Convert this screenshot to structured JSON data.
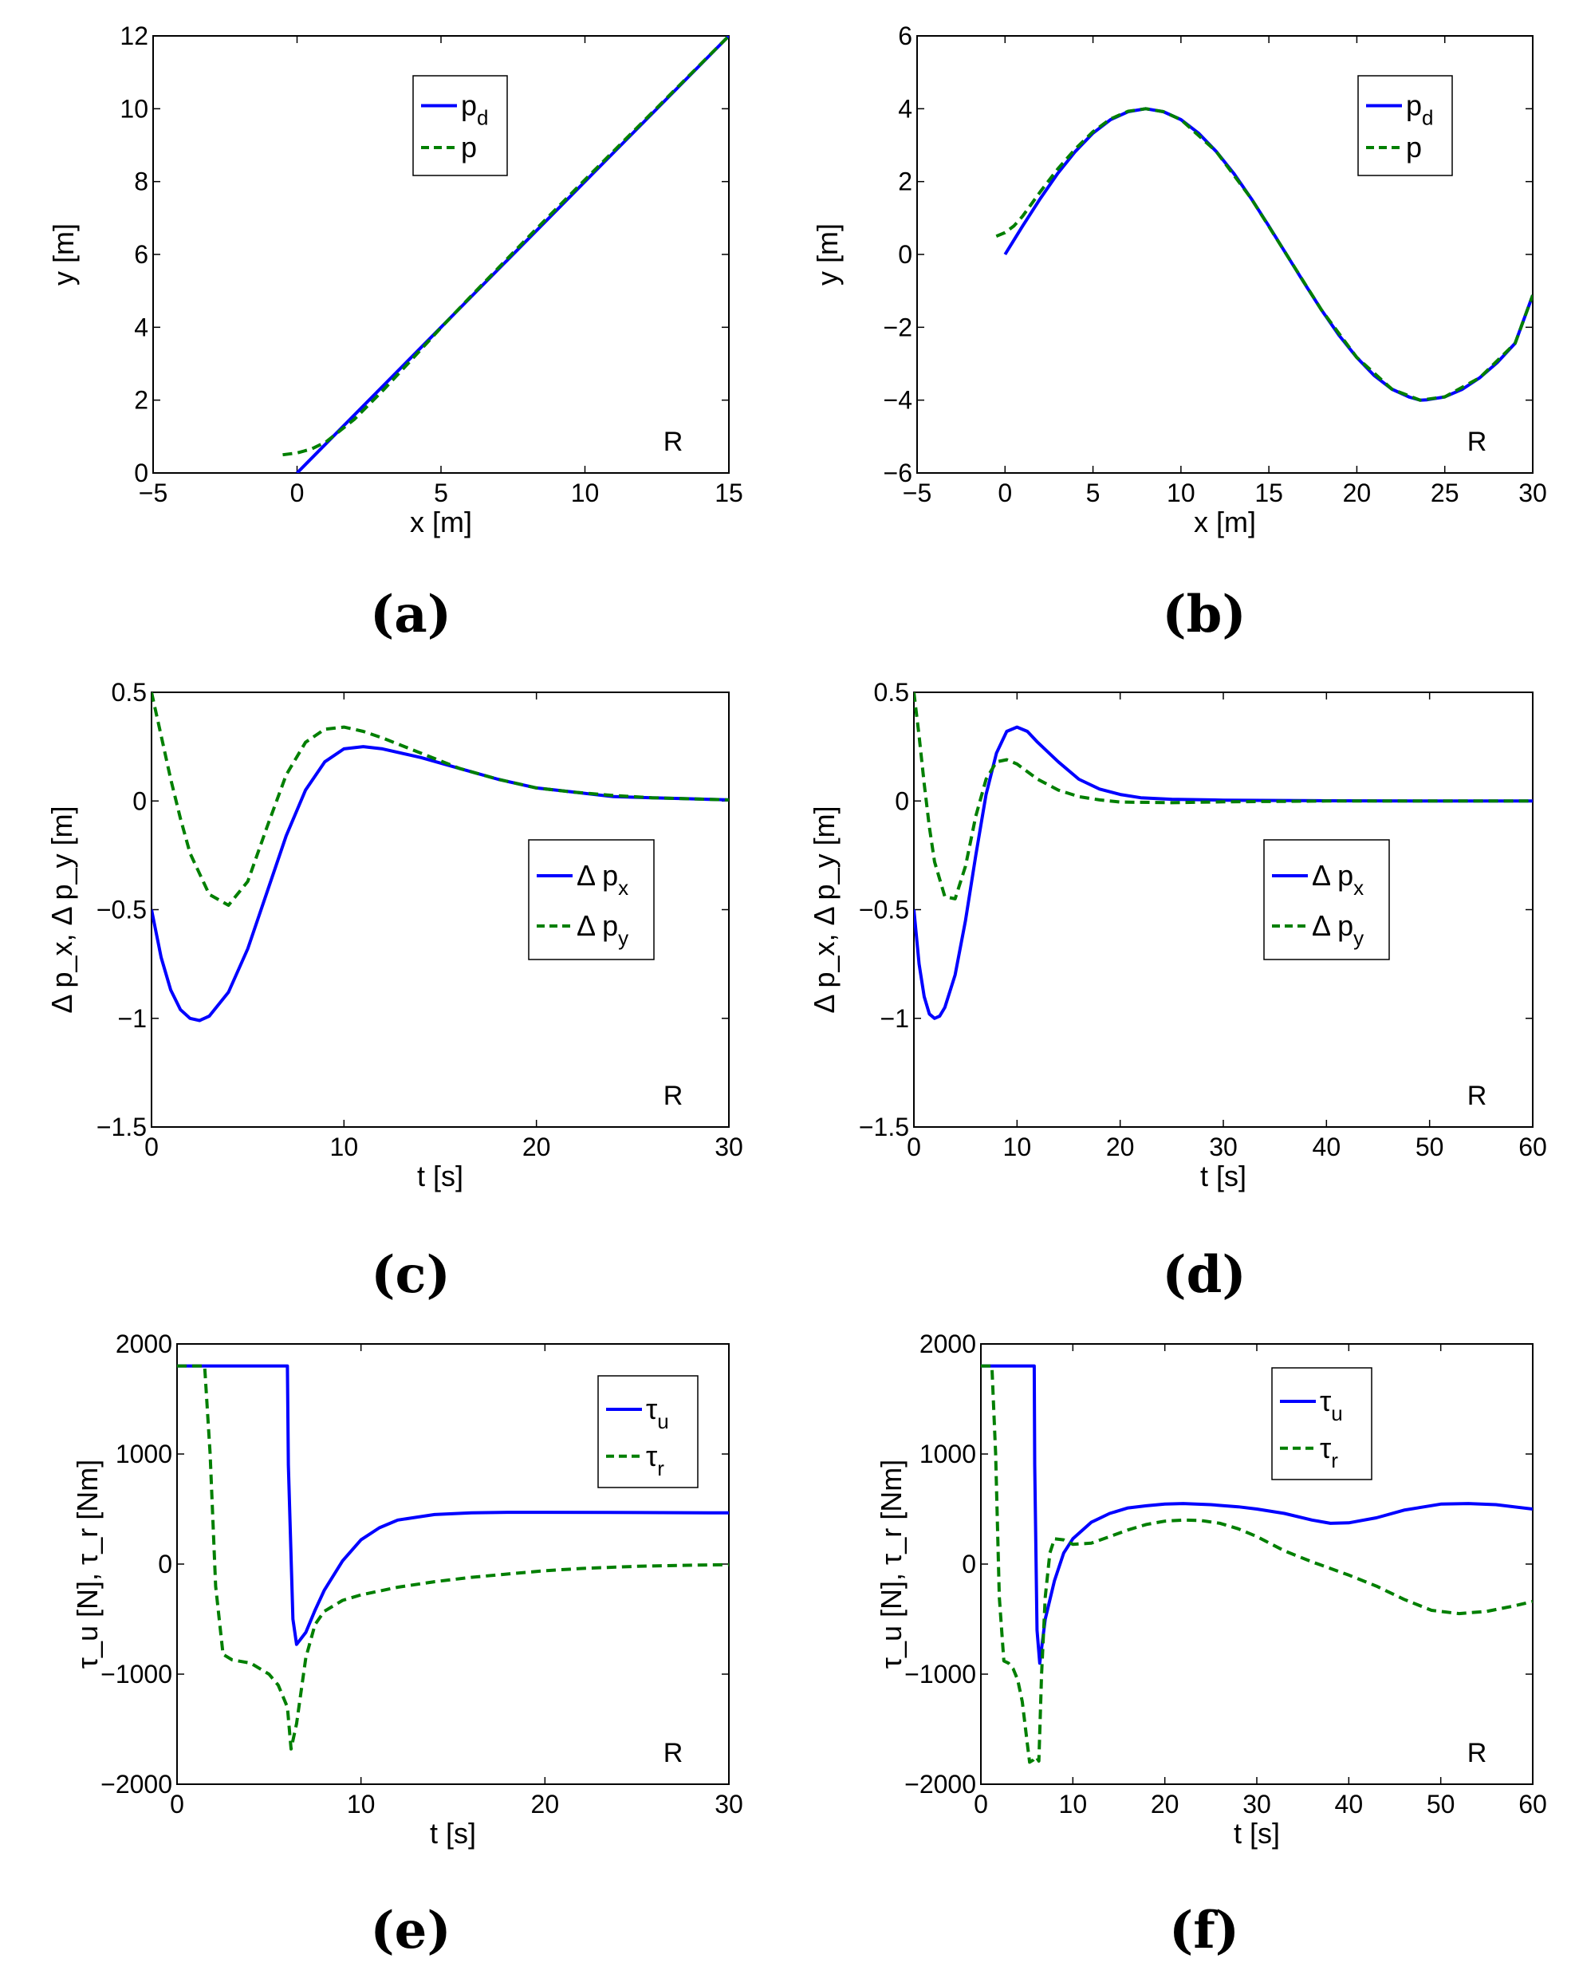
{
  "figure": {
    "caption_labels": [
      "(a)",
      "(b)",
      "(c)",
      "(d)",
      "(e)",
      "(f)"
    ]
  },
  "colors": {
    "blue": "#0000ff",
    "green": "#007f00",
    "axis": "#000000"
  },
  "chart_data": [
    {
      "id": "a",
      "type": "line",
      "xlabel": "x [m]",
      "ylabel": "y [m]",
      "xlim": [
        -5,
        15
      ],
      "ylim": [
        0,
        12
      ],
      "xticks": [
        -5,
        0,
        5,
        10,
        15
      ],
      "xtick_labels": [
        "−5",
        "0",
        "5",
        "10",
        "15"
      ],
      "yticks": [
        0,
        2,
        4,
        6,
        8,
        10,
        12
      ],
      "ytick_labels": [
        "0",
        "2",
        "4",
        "6",
        "8",
        "10",
        "12"
      ],
      "annotation": "R",
      "legend": {
        "position": "top-center",
        "entries": [
          {
            "base": "p",
            "sub": "d"
          },
          {
            "base": "p",
            "sub": ""
          }
        ]
      },
      "series": [
        {
          "name": "p_d",
          "style": "solid",
          "color": "#0000ff",
          "x": [
            0,
            15
          ],
          "y": [
            0,
            12
          ]
        },
        {
          "name": "p",
          "style": "dashed",
          "color": "#007f00",
          "x": [
            -0.5,
            0,
            0.5,
            1,
            2,
            3,
            4,
            5,
            6,
            8,
            10,
            12,
            15
          ],
          "y": [
            0.5,
            0.55,
            0.66,
            0.85,
            1.48,
            2.28,
            3.13,
            3.99,
            4.82,
            6.45,
            8.05,
            9.63,
            12.0
          ]
        }
      ]
    },
    {
      "id": "b",
      "type": "line",
      "xlabel": "x [m]",
      "ylabel": "y [m]",
      "xlim": [
        -5,
        30
      ],
      "ylim": [
        -6,
        6
      ],
      "xticks": [
        -5,
        0,
        5,
        10,
        15,
        20,
        25,
        30
      ],
      "xtick_labels": [
        "−5",
        "0",
        "5",
        "10",
        "15",
        "20",
        "25",
        "30"
      ],
      "yticks": [
        -6,
        -4,
        -2,
        0,
        2,
        4,
        6
      ],
      "ytick_labels": [
        "−6",
        "−4",
        "−2",
        "0",
        "2",
        "4",
        "6"
      ],
      "annotation": "R",
      "legend": {
        "position": "top-center",
        "entries": [
          {
            "base": "p",
            "sub": "d"
          },
          {
            "base": "p",
            "sub": ""
          }
        ]
      },
      "series": [
        {
          "name": "p_d",
          "style": "solid",
          "color": "#0000ff",
          "x": [
            0,
            1,
            2,
            3,
            4,
            5,
            6,
            7,
            8,
            9,
            10,
            11,
            12,
            13,
            14,
            15,
            16,
            17,
            18,
            19,
            20,
            21,
            22,
            23,
            23.6,
            24,
            25,
            26,
            27,
            28,
            29,
            30
          ],
          "y": [
            0,
            0.78,
            1.53,
            2.23,
            2.83,
            3.33,
            3.7,
            3.92,
            4.0,
            3.92,
            3.7,
            3.33,
            2.83,
            2.23,
            1.53,
            0.78,
            0,
            -0.78,
            -1.53,
            -2.23,
            -2.83,
            -3.33,
            -3.7,
            -3.92,
            -4.0,
            -3.99,
            -3.91,
            -3.7,
            -3.38,
            -2.96,
            -2.44,
            -1.12
          ]
        },
        {
          "name": "p",
          "style": "dashed",
          "color": "#007f00",
          "x": [
            -0.5,
            0,
            0.5,
            1,
            2,
            3,
            4,
            5,
            6,
            7,
            8,
            9,
            10,
            12,
            14,
            16,
            18,
            20,
            22,
            23.6,
            25,
            27,
            29,
            30
          ],
          "y": [
            0.5,
            0.6,
            0.78,
            1.05,
            1.72,
            2.35,
            2.9,
            3.37,
            3.72,
            3.93,
            4.0,
            3.92,
            3.7,
            2.83,
            1.53,
            0,
            -1.53,
            -2.83,
            -3.7,
            -4.0,
            -3.91,
            -3.38,
            -2.44,
            -1.12
          ]
        }
      ]
    },
    {
      "id": "c",
      "type": "line",
      "xlabel": "t [s]",
      "ylabel": "Δ p_x, Δ p_y [m]",
      "xlim": [
        0,
        30
      ],
      "ylim": [
        -1.5,
        0.5
      ],
      "xticks": [
        0,
        10,
        20,
        30
      ],
      "xtick_labels": [
        "0",
        "10",
        "20",
        "30"
      ],
      "yticks": [
        -1.5,
        -1,
        -0.5,
        0,
        0.5
      ],
      "ytick_labels": [
        "−1.5",
        "−1",
        "−0.5",
        "0",
        "0.5"
      ],
      "annotation": "R",
      "legend": {
        "position": "right-center",
        "entries": [
          {
            "base": "Δ p",
            "sub": "x"
          },
          {
            "base": "Δ p",
            "sub": "y"
          }
        ]
      },
      "series": [
        {
          "name": "Δ p_x",
          "style": "solid",
          "color": "#0000ff",
          "x": [
            0,
            0.5,
            1,
            1.5,
            2,
            2.5,
            3,
            4,
            5,
            6,
            7,
            8,
            9,
            10,
            11,
            12,
            14,
            16,
            18,
            20,
            22,
            24,
            26,
            28,
            30
          ],
          "y": [
            -0.5,
            -0.72,
            -0.87,
            -0.96,
            -1.0,
            -1.01,
            -0.99,
            -0.88,
            -0.68,
            -0.42,
            -0.16,
            0.05,
            0.18,
            0.24,
            0.25,
            0.24,
            0.2,
            0.15,
            0.1,
            0.06,
            0.04,
            0.02,
            0.015,
            0.01,
            0.005
          ]
        },
        {
          "name": "Δ p_y",
          "style": "dashed",
          "color": "#007f00",
          "x": [
            0,
            0.5,
            1,
            1.5,
            2,
            3,
            4,
            5,
            6,
            7,
            8,
            9,
            10,
            11,
            12,
            14,
            16,
            18,
            20,
            22,
            24,
            26,
            28,
            30
          ],
          "y": [
            0.5,
            0.3,
            0.1,
            -0.08,
            -0.24,
            -0.43,
            -0.48,
            -0.37,
            -0.12,
            0.12,
            0.27,
            0.33,
            0.34,
            0.32,
            0.29,
            0.22,
            0.15,
            0.1,
            0.06,
            0.04,
            0.025,
            0.015,
            0.01,
            0.005
          ]
        }
      ]
    },
    {
      "id": "d",
      "type": "line",
      "xlabel": "t [s]",
      "ylabel": "Δ p_x, Δ p_y [m]",
      "xlim": [
        0,
        60
      ],
      "ylim": [
        -1.5,
        0.5
      ],
      "xticks": [
        0,
        10,
        20,
        30,
        40,
        50,
        60
      ],
      "xtick_labels": [
        "0",
        "10",
        "20",
        "30",
        "40",
        "50",
        "60"
      ],
      "yticks": [
        -1.5,
        -1,
        -0.5,
        0,
        0.5
      ],
      "ytick_labels": [
        "−1.5",
        "−1",
        "−0.5",
        "0",
        "0.5"
      ],
      "annotation": "R",
      "legend": {
        "position": "right-center",
        "entries": [
          {
            "base": "Δ p",
            "sub": "x"
          },
          {
            "base": "Δ p",
            "sub": "y"
          }
        ]
      },
      "series": [
        {
          "name": "Δ p_x",
          "style": "solid",
          "color": "#0000ff",
          "x": [
            0,
            0.5,
            1,
            1.5,
            2,
            2.5,
            3,
            4,
            5,
            6,
            7,
            8,
            9,
            10,
            11,
            12,
            14,
            16,
            18,
            20,
            22,
            25,
            30,
            40,
            50,
            60
          ],
          "y": [
            -0.5,
            -0.75,
            -0.9,
            -0.98,
            -1.0,
            -0.99,
            -0.95,
            -0.8,
            -0.55,
            -0.25,
            0.03,
            0.22,
            0.32,
            0.34,
            0.32,
            0.27,
            0.18,
            0.1,
            0.055,
            0.03,
            0.015,
            0.008,
            0.004,
            0.001,
            0,
            0
          ]
        },
        {
          "name": "Δ p_y",
          "style": "dashed",
          "color": "#007f00",
          "x": [
            0,
            0.5,
            1,
            1.5,
            2,
            3,
            4,
            5,
            6,
            7,
            8,
            9,
            10,
            12,
            14,
            16,
            18,
            20,
            25,
            30,
            40,
            50,
            60
          ],
          "y": [
            0.5,
            0.3,
            0.08,
            -0.12,
            -0.28,
            -0.44,
            -0.45,
            -0.3,
            -0.07,
            0.1,
            0.18,
            0.19,
            0.17,
            0.1,
            0.05,
            0.02,
            0.005,
            -0.005,
            -0.008,
            -0.004,
            0,
            0,
            0
          ]
        }
      ]
    },
    {
      "id": "e",
      "type": "line",
      "xlabel": "t [s]",
      "ylabel": "τ_u [N], τ_r [Nm]",
      "xlim": [
        0,
        30
      ],
      "ylim": [
        -2000,
        2000
      ],
      "xticks": [
        0,
        10,
        20,
        30
      ],
      "xtick_labels": [
        "0",
        "10",
        "20",
        "30"
      ],
      "yticks": [
        -2000,
        -1000,
        0,
        1000,
        2000
      ],
      "ytick_labels": [
        "−2000",
        "−1000",
        "0",
        "1000",
        "2000"
      ],
      "annotation": "R",
      "legend": {
        "position": "top-right",
        "entries": [
          {
            "base": "τ",
            "sub": "u"
          },
          {
            "base": "τ",
            "sub": "r"
          }
        ]
      },
      "series": [
        {
          "name": "τ_u",
          "style": "solid",
          "color": "#0000ff",
          "x": [
            0,
            6.0,
            6.05,
            6.3,
            6.5,
            7,
            7.5,
            8,
            9,
            10,
            11,
            12,
            14,
            16,
            18,
            20,
            25,
            30
          ],
          "y": [
            1800,
            1800,
            900,
            -500,
            -730,
            -620,
            -420,
            -240,
            30,
            220,
            330,
            400,
            450,
            465,
            470,
            470,
            468,
            465
          ]
        },
        {
          "name": "τ_r",
          "style": "dashed",
          "color": "#007f00",
          "x": [
            0,
            1.5,
            1.8,
            2.1,
            2.5,
            3,
            4,
            5,
            5.5,
            6.0,
            6.2,
            6.5,
            7,
            7.5,
            8,
            9,
            10,
            12,
            14,
            16,
            18,
            20,
            22,
            25,
            28,
            30
          ],
          "y": [
            1800,
            1800,
            1000,
            -200,
            -820,
            -870,
            -900,
            -1000,
            -1100,
            -1300,
            -1680,
            -1450,
            -850,
            -550,
            -430,
            -330,
            -280,
            -210,
            -160,
            -120,
            -90,
            -60,
            -40,
            -20,
            -10,
            -5
          ]
        }
      ]
    },
    {
      "id": "f",
      "type": "line",
      "xlabel": "t [s]",
      "ylabel": "τ_u [N], τ_r [Nm]",
      "xlim": [
        0,
        60
      ],
      "ylim": [
        -2000,
        2000
      ],
      "xticks": [
        0,
        10,
        20,
        30,
        40,
        50,
        60
      ],
      "xtick_labels": [
        "0",
        "10",
        "20",
        "30",
        "40",
        "50",
        "60"
      ],
      "yticks": [
        -2000,
        -1000,
        0,
        1000,
        2000
      ],
      "ytick_labels": [
        "−2000",
        "−1000",
        "0",
        "1000",
        "2000"
      ],
      "annotation": "R",
      "legend": {
        "position": "top-center",
        "entries": [
          {
            "base": "τ",
            "sub": "u"
          },
          {
            "base": "τ",
            "sub": "r"
          }
        ]
      },
      "series": [
        {
          "name": "τ_u",
          "style": "solid",
          "color": "#0000ff",
          "x": [
            0,
            5.8,
            5.85,
            6.1,
            6.4,
            7,
            8,
            9,
            10,
            12,
            14,
            16,
            18,
            20,
            22,
            25,
            28,
            30,
            33,
            36,
            38,
            40,
            43,
            46,
            50,
            53,
            56,
            60
          ],
          "y": [
            1800,
            1800,
            900,
            -600,
            -900,
            -500,
            -150,
            100,
            230,
            380,
            460,
            510,
            530,
            545,
            550,
            540,
            520,
            500,
            460,
            400,
            370,
            375,
            420,
            490,
            545,
            550,
            540,
            500
          ]
        },
        {
          "name": "τ_r",
          "style": "dashed",
          "color": "#007f00",
          "x": [
            0,
            1.2,
            1.6,
            2.0,
            2.5,
            3,
            3.5,
            4,
            4.5,
            5,
            5.3,
            5.7,
            6.0,
            6.3,
            6.6,
            7,
            7.5,
            8,
            9,
            10,
            12,
            14,
            16,
            18,
            20,
            22,
            24,
            26,
            28,
            30,
            33,
            36,
            40,
            43,
            46,
            49,
            52,
            55,
            58,
            60
          ],
          "y": [
            1800,
            1800,
            1000,
            -300,
            -880,
            -900,
            -950,
            -1050,
            -1250,
            -1600,
            -1800,
            -1780,
            -1750,
            -1790,
            -1000,
            -300,
            100,
            230,
            220,
            180,
            190,
            250,
            310,
            360,
            390,
            400,
            395,
            370,
            320,
            250,
            120,
            20,
            -100,
            -200,
            -320,
            -420,
            -450,
            -430,
            -380,
            -340
          ]
        }
      ]
    }
  ]
}
